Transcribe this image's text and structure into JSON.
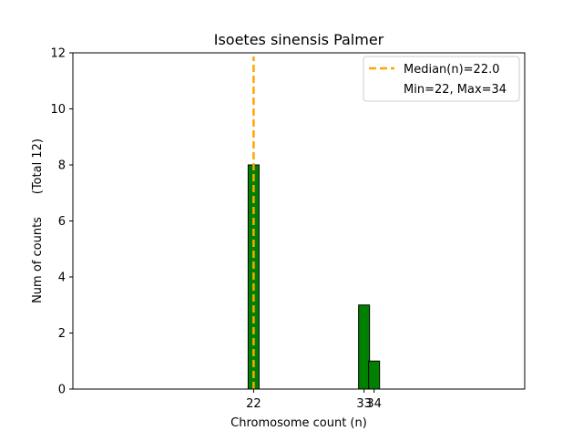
{
  "chart_data": {
    "type": "bar",
    "title": "Isoetes sinensis Palmer",
    "xlabel": "Chromosome count (n)",
    "ylabel": "Num of counts      (Total 12)",
    "bars": [
      {
        "x": 22,
        "value": 8
      },
      {
        "x": 33,
        "value": 3
      },
      {
        "x": 34,
        "value": 1
      }
    ],
    "bar_color": "#008000",
    "bar_edge_color": "#000000",
    "xlim": [
      4,
      49
    ],
    "ylim": [
      0,
      12
    ],
    "x_ticks": [
      22,
      33,
      34
    ],
    "y_ticks": [
      0,
      2,
      4,
      6,
      8,
      10,
      12
    ],
    "median": {
      "value": 22,
      "color": "#FFA500"
    },
    "legend": {
      "position": "top-right",
      "entries": [
        {
          "label": "Median(n)=22.0",
          "style": "dashed-line",
          "color": "#FFA500"
        },
        {
          "label": "Min=22, Max=34",
          "style": "none"
        }
      ]
    },
    "grid": false
  }
}
